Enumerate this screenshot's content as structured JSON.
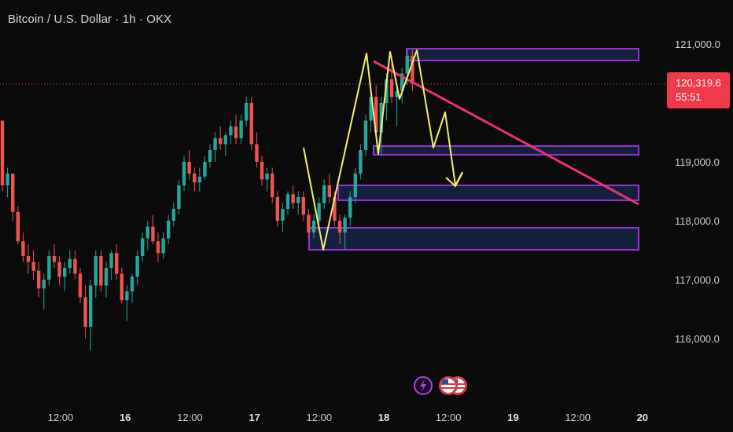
{
  "header": {
    "title": "Bitcoin / U.S. Dollar · 1h · OKX"
  },
  "price_badge": {
    "price": "120,319.6",
    "countdown": "55:51"
  },
  "colors": {
    "background": "#0b0b0b",
    "candle_up": "#26a69a",
    "candle_down": "#ef5350",
    "trendline": "#e8336e",
    "zone_border": "#9b30d9",
    "zone_fill": "#142344",
    "projection": "#f4ef70",
    "price_line": "#f0394a"
  },
  "icons": {
    "events": [
      "lightning-event-icon",
      "us-flag-icon",
      "us-flag-icon"
    ]
  },
  "chart_data": {
    "type": "candlestick",
    "title": "Bitcoin / U.S. Dollar · 1h · OKX",
    "symbol": "BTCUSD",
    "timeframe": "1h",
    "exchange": "OKX",
    "ylim": [
      115500,
      121600
    ],
    "y_ticks": [
      {
        "value": 121000,
        "label": "121,000.0"
      },
      {
        "value": 119000,
        "label": "119,000.0"
      },
      {
        "value": 118000,
        "label": "118,000.0"
      },
      {
        "value": 117000,
        "label": "117,000.0"
      },
      {
        "value": 116000,
        "label": "116,000.0"
      }
    ],
    "x_ticks": [
      {
        "hours": 12,
        "label": "12:00",
        "bold": false
      },
      {
        "hours": 24,
        "label": "16",
        "bold": true
      },
      {
        "hours": 36,
        "label": "12:00",
        "bold": false
      },
      {
        "hours": 48,
        "label": "17",
        "bold": true
      },
      {
        "hours": 60,
        "label": "12:00",
        "bold": false
      },
      {
        "hours": 72,
        "label": "18",
        "bold": true
      },
      {
        "hours": 84,
        "label": "12:00",
        "bold": false
      },
      {
        "hours": 96,
        "label": "19",
        "bold": true
      },
      {
        "hours": 108,
        "label": "12:00",
        "bold": false
      },
      {
        "hours": 120,
        "label": "20",
        "bold": true
      }
    ],
    "current_price": 120319.6,
    "grid": false,
    "ohlc": [
      [
        119700,
        119700,
        118500,
        118600
      ],
      [
        118600,
        118900,
        118400,
        118800
      ],
      [
        118800,
        118800,
        118000,
        118150
      ],
      [
        118150,
        118250,
        117600,
        117650
      ],
      [
        117650,
        117800,
        117300,
        117400
      ],
      [
        117400,
        117600,
        117100,
        117300
      ],
      [
        117300,
        117500,
        117000,
        117150
      ],
      [
        117150,
        117300,
        116700,
        116850
      ],
      [
        116850,
        117100,
        116500,
        117000
      ],
      [
        117000,
        117500,
        116900,
        117400
      ],
      [
        117400,
        117600,
        117200,
        117300
      ],
      [
        117300,
        117400,
        116900,
        117050
      ],
      [
        117050,
        117300,
        116800,
        117200
      ],
      [
        117200,
        117500,
        117100,
        117350
      ],
      [
        117350,
        117500,
        117000,
        117100
      ],
      [
        117100,
        117200,
        116600,
        116700
      ],
      [
        116700,
        116900,
        116000,
        116200
      ],
      [
        116200,
        117000,
        115800,
        116900
      ],
      [
        116900,
        117500,
        116700,
        117400
      ],
      [
        117400,
        117500,
        116800,
        116900
      ],
      [
        116900,
        117300,
        116700,
        117200
      ],
      [
        117200,
        117500,
        117000,
        117450
      ],
      [
        117450,
        117600,
        117000,
        117100
      ],
      [
        117100,
        117200,
        116600,
        116650
      ],
      [
        116650,
        116900,
        116300,
        116800
      ],
      [
        116800,
        117100,
        116600,
        117050
      ],
      [
        117050,
        117500,
        116900,
        117400
      ],
      [
        117400,
        117800,
        117300,
        117700
      ],
      [
        117700,
        118000,
        117500,
        117900
      ],
      [
        117900,
        118100,
        117600,
        117650
      ],
      [
        117650,
        117800,
        117300,
        117450
      ],
      [
        117450,
        117800,
        117350,
        117700
      ],
      [
        117700,
        118100,
        117600,
        118000
      ],
      [
        118000,
        118300,
        117900,
        118200
      ],
      [
        118200,
        118700,
        118100,
        118600
      ],
      [
        118600,
        119100,
        118500,
        119000
      ],
      [
        119000,
        119200,
        118700,
        118800
      ],
      [
        118800,
        118900,
        118500,
        118650
      ],
      [
        118650,
        118900,
        118500,
        118750
      ],
      [
        118750,
        119100,
        118700,
        119000
      ],
      [
        119000,
        119300,
        118900,
        119200
      ],
      [
        119200,
        119500,
        119000,
        119400
      ],
      [
        119400,
        119600,
        119200,
        119300
      ],
      [
        119300,
        119500,
        119100,
        119450
      ],
      [
        119450,
        119700,
        119300,
        119600
      ],
      [
        119600,
        119800,
        119300,
        119400
      ],
      [
        119400,
        119800,
        119300,
        119700
      ],
      [
        119700,
        120100,
        119600,
        120000
      ],
      [
        120000,
        120100,
        119200,
        119300
      ],
      [
        119300,
        119500,
        118900,
        119000
      ],
      [
        119000,
        119100,
        118600,
        118700
      ],
      [
        118700,
        118900,
        118500,
        118800
      ],
      [
        118800,
        118900,
        118300,
        118400
      ],
      [
        118400,
        118500,
        117900,
        118000
      ],
      [
        118000,
        118300,
        117800,
        118200
      ],
      [
        118200,
        118500,
        118100,
        118450
      ],
      [
        118450,
        118600,
        118200,
        118300
      ],
      [
        118300,
        118500,
        118100,
        118400
      ],
      [
        118400,
        118500,
        118000,
        118100
      ],
      [
        118100,
        118200,
        117700,
        117800
      ],
      [
        117800,
        118100,
        117700,
        118000
      ],
      [
        118000,
        118400,
        117900,
        118300
      ],
      [
        118300,
        118700,
        118200,
        118600
      ],
      [
        118600,
        118800,
        118300,
        118400
      ],
      [
        118400,
        118500,
        117900,
        118000
      ],
      [
        118000,
        118100,
        117600,
        117800
      ],
      [
        117800,
        118100,
        117500,
        118050
      ],
      [
        118050,
        118500,
        117900,
        118400
      ],
      [
        118400,
        118900,
        118300,
        118800
      ],
      [
        118800,
        119300,
        118700,
        119200
      ],
      [
        119200,
        119800,
        119100,
        119700
      ],
      [
        119700,
        120200,
        119500,
        120100
      ],
      [
        120100,
        120300,
        119400,
        119500
      ],
      [
        119500,
        120100,
        119100,
        120000
      ],
      [
        120000,
        120500,
        119700,
        120400
      ],
      [
        120400,
        120800,
        120000,
        120100
      ],
      [
        120100,
        120300,
        119600,
        120200
      ],
      [
        120200,
        120600,
        120000,
        120500
      ],
      [
        120500,
        120900,
        120300,
        120800
      ],
      [
        120800,
        120900,
        120200,
        120319.6
      ]
    ]
  }
}
